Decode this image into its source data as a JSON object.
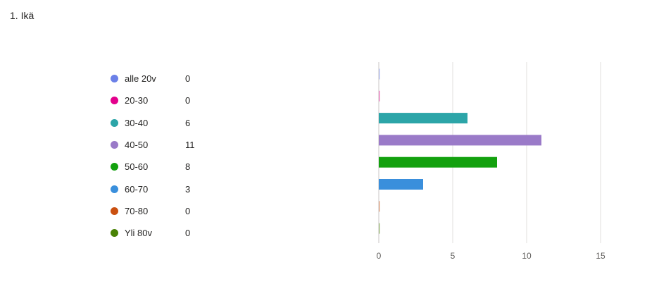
{
  "question": {
    "title": "1. Ikä"
  },
  "chart_data": {
    "type": "bar",
    "orientation": "horizontal",
    "title": "",
    "xlabel": "",
    "ylabel": "",
    "categories": [
      "alle 20v",
      "20-30",
      "30-40",
      "40-50",
      "50-60",
      "60-70",
      "70-80",
      "Yli 80v"
    ],
    "values": [
      0,
      0,
      6,
      11,
      8,
      3,
      0,
      0
    ],
    "colors": [
      "#6b80e8",
      "#e3008c",
      "#2ca5a8",
      "#9a7ac8",
      "#13a10e",
      "#3a8fdc",
      "#ca5010",
      "#498205"
    ],
    "xlim": [
      0,
      15
    ],
    "xticks": [
      "0",
      "5",
      "10",
      "15"
    ],
    "grid": true,
    "legend_position": "left"
  }
}
